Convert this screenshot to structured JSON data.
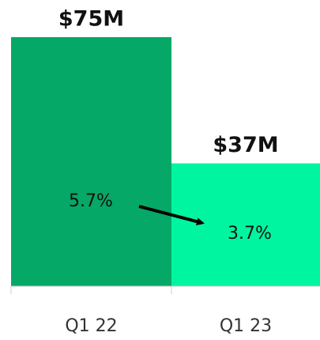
{
  "chart_data": {
    "type": "bar",
    "categories": [
      "Q1 22",
      "Q1 23"
    ],
    "values": [
      75,
      37
    ],
    "value_labels": [
      "$75M",
      "$37M"
    ],
    "colors": [
      "#05a866",
      "#00f5a0"
    ],
    "annotations": [
      "5.7%",
      "3.7%"
    ]
  }
}
